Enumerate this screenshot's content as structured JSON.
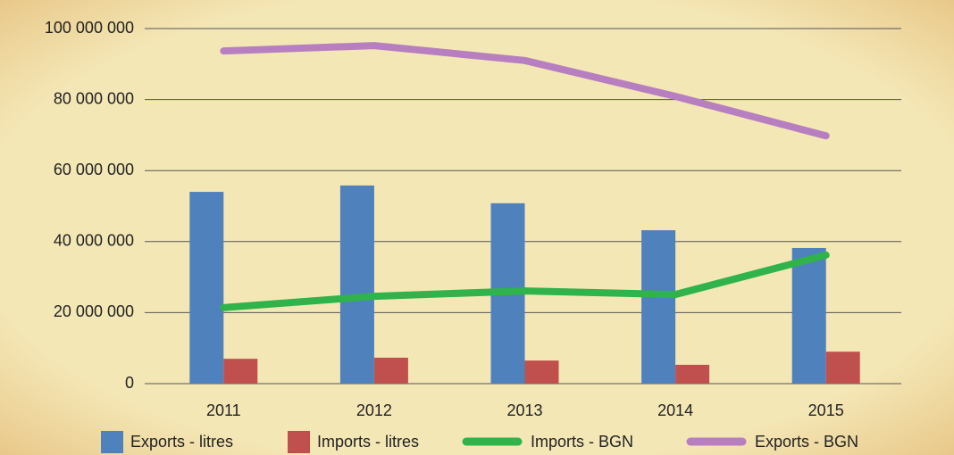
{
  "chart_data": {
    "type": "combo",
    "categories": [
      "2011",
      "2012",
      "2013",
      "2014",
      "2015"
    ],
    "series": [
      {
        "name": "Exports - litres",
        "type": "bar",
        "color": "#4f81bd",
        "values": [
          54000000,
          55800000,
          50800000,
          43200000,
          38200000
        ]
      },
      {
        "name": "Imports - litres",
        "type": "bar",
        "color": "#c0504d",
        "values": [
          7000000,
          7300000,
          6500000,
          5300000,
          9000000
        ]
      },
      {
        "name": "Imports - BGN",
        "type": "line",
        "color": "#2fb34a",
        "values": [
          21400000,
          24600000,
          26100000,
          25100000,
          36200000
        ]
      },
      {
        "name": "Exports - BGN",
        "type": "line",
        "color": "#b77fc0",
        "values": [
          93700000,
          95200000,
          91000000,
          80900000,
          69800000
        ]
      }
    ],
    "ylim": [
      0,
      100000000
    ],
    "yticks": [
      {
        "value": 0,
        "label": "0"
      },
      {
        "value": 20000000,
        "label": "20 000 000"
      },
      {
        "value": 40000000,
        "label": "40 000 000"
      },
      {
        "value": 60000000,
        "label": "60 000 000"
      },
      {
        "value": 80000000,
        "label": "80 000 000"
      },
      {
        "value": 100000000,
        "label": "100 000 000"
      }
    ],
    "grid": true,
    "legend": "bottom"
  }
}
